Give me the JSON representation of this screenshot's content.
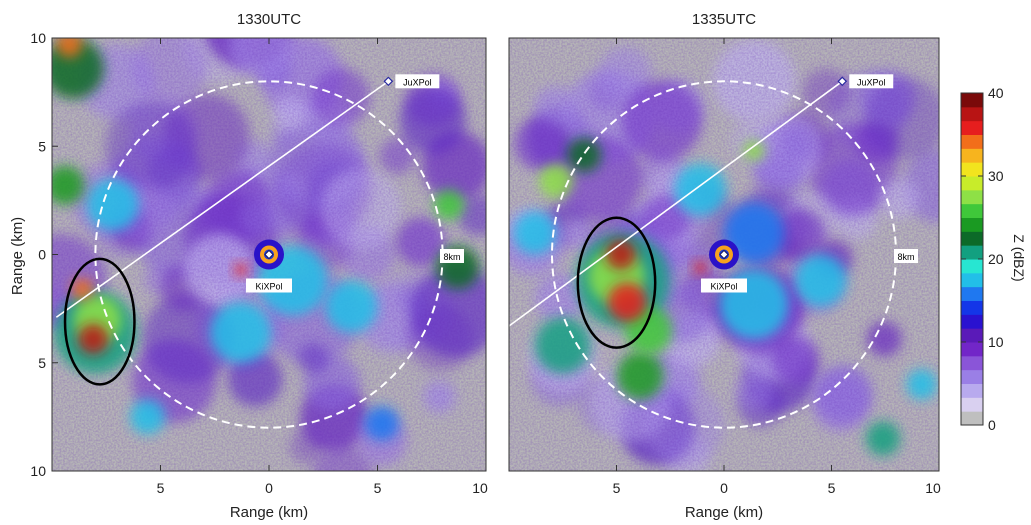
{
  "chart_data": [
    {
      "type": "heatmap",
      "title": "1330UTC",
      "xlabel": "Range (km)",
      "ylabel": "Range (km)",
      "xlim": [
        -10,
        10
      ],
      "ylim": [
        -10,
        10
      ],
      "x_ticks": [
        -10,
        -5,
        0,
        5,
        10
      ],
      "x_tick_labels": [
        "",
        "5",
        "0",
        "5",
        "10"
      ],
      "y_ticks": [
        10,
        5,
        0,
        -5,
        -10
      ],
      "y_tick_labels": [
        "10",
        "5",
        "0",
        "5",
        "10"
      ],
      "range_ring_km": 8,
      "range_ring_label": "8km",
      "stations": [
        {
          "name": "KiXPol",
          "x": 0,
          "y": 0
        },
        {
          "name": "JuXPol",
          "x": 5.5,
          "y": 8.0
        }
      ],
      "beam_line": {
        "from": [
          -9.8,
          -2.9
        ],
        "to": [
          5.5,
          8.0
        ]
      },
      "highlight_ellipse": {
        "cx": -7.8,
        "cy": -3.1,
        "rx": 1.6,
        "ry": 2.9
      },
      "cells": [
        {
          "x": -8.1,
          "y": -3.9,
          "r": 0.7,
          "z": 38
        },
        {
          "x": -8.6,
          "y": -1.6,
          "r": 0.5,
          "z": 34
        },
        {
          "x": -7.9,
          "y": -3.0,
          "r": 1.1,
          "z": 28
        },
        {
          "x": -8.0,
          "y": -3.6,
          "r": 1.9,
          "z": 20
        },
        {
          "x": -9.2,
          "y": 9.7,
          "r": 0.6,
          "z": 34
        },
        {
          "x": -9.0,
          "y": 8.6,
          "r": 1.4,
          "z": 22
        },
        {
          "x": -9.4,
          "y": 3.2,
          "r": 0.9,
          "z": 24
        },
        {
          "x": -7.2,
          "y": 2.3,
          "r": 1.2,
          "z": 18
        },
        {
          "x": -1.3,
          "y": -3.6,
          "r": 1.4,
          "z": 18
        },
        {
          "x": 1.1,
          "y": -1.2,
          "r": 1.6,
          "z": 17
        },
        {
          "x": 3.8,
          "y": -2.4,
          "r": 1.2,
          "z": 17
        },
        {
          "x": 8.3,
          "y": 2.3,
          "r": 0.7,
          "z": 26
        },
        {
          "x": 8.7,
          "y": -0.6,
          "r": 1.0,
          "z": 22
        },
        {
          "x": -5.6,
          "y": -7.5,
          "r": 0.8,
          "z": 18
        },
        {
          "x": 5.2,
          "y": -7.8,
          "r": 0.8,
          "z": 16
        },
        {
          "x": -1.3,
          "y": -0.7,
          "r": 0.3,
          "z": 36
        }
      ]
    },
    {
      "type": "heatmap",
      "title": "1335UTC",
      "xlabel": "Range (km)",
      "ylabel": "",
      "xlim": [
        -10,
        10
      ],
      "ylim": [
        -10,
        10
      ],
      "x_ticks": [
        -10,
        -5,
        0,
        5,
        10
      ],
      "x_tick_labels": [
        "",
        "5",
        "0",
        "5",
        "10"
      ],
      "range_ring_km": 8,
      "range_ring_label": "8km",
      "stations": [
        {
          "name": "KiXPol",
          "x": 0,
          "y": 0
        },
        {
          "name": "JuXPol",
          "x": 5.5,
          "y": 8.0
        }
      ],
      "beam_line": {
        "from": [
          -10,
          -3.3
        ],
        "to": [
          5.5,
          8.0
        ]
      },
      "highlight_ellipse": {
        "cx": -5.0,
        "cy": -1.3,
        "rx": 1.8,
        "ry": 3.0
      },
      "cells": [
        {
          "x": -4.8,
          "y": 0.0,
          "r": 0.7,
          "z": 37
        },
        {
          "x": -4.5,
          "y": -2.2,
          "r": 0.9,
          "z": 35
        },
        {
          "x": -5.0,
          "y": -1.0,
          "r": 1.3,
          "z": 28
        },
        {
          "x": -4.7,
          "y": -1.2,
          "r": 2.2,
          "z": 20
        },
        {
          "x": -3.5,
          "y": -3.5,
          "r": 1.1,
          "z": 25
        },
        {
          "x": -3.9,
          "y": -5.6,
          "r": 1.1,
          "z": 24
        },
        {
          "x": -7.8,
          "y": 3.4,
          "r": 0.8,
          "z": 27
        },
        {
          "x": -6.5,
          "y": 4.6,
          "r": 0.8,
          "z": 22
        },
        {
          "x": -7.5,
          "y": -4.2,
          "r": 1.3,
          "z": 20
        },
        {
          "x": -8.8,
          "y": 1.0,
          "r": 1.0,
          "z": 18
        },
        {
          "x": -1.1,
          "y": 3.0,
          "r": 1.2,
          "z": 17
        },
        {
          "x": 1.4,
          "y": 1.0,
          "r": 1.4,
          "z": 16
        },
        {
          "x": 1.4,
          "y": -2.3,
          "r": 1.6,
          "z": 18
        },
        {
          "x": 4.5,
          "y": -1.2,
          "r": 1.2,
          "z": 17
        },
        {
          "x": 1.4,
          "y": 4.8,
          "r": 0.5,
          "z": 27
        },
        {
          "x": 7.4,
          "y": -8.5,
          "r": 0.8,
          "z": 20
        },
        {
          "x": 9.2,
          "y": -6.0,
          "r": 0.7,
          "z": 18
        },
        {
          "x": -1.1,
          "y": -0.6,
          "r": 0.3,
          "z": 36
        }
      ]
    }
  ],
  "colorbar": {
    "label": "Z (dBZ)",
    "min": 0,
    "max": 40,
    "tick_values": [
      0,
      10,
      20,
      30,
      40
    ],
    "tick_labels": [
      "0",
      "10",
      "20",
      "30",
      "40"
    ],
    "colors": [
      "#bfbfbf",
      "#d9d0f0",
      "#b8aaee",
      "#9a7fe6",
      "#8a55d8",
      "#7226c8",
      "#5a1ab8",
      "#2a12d0",
      "#1436e8",
      "#1f78f0",
      "#22bfe8",
      "#27e6d2",
      "#12a080",
      "#0c6a28",
      "#1a9a22",
      "#3fc83a",
      "#8ee046",
      "#c8ec2a",
      "#f2e41e",
      "#f7b41e",
      "#f26e1a",
      "#e61e1e",
      "#b81414",
      "#7a0a0a"
    ]
  }
}
